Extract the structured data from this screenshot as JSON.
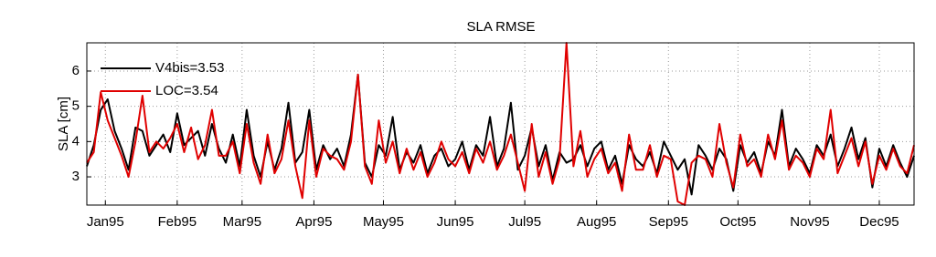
{
  "chart_data": {
    "type": "line",
    "title": "SLA RMSE",
    "y_label": "SLA [cm]",
    "x": [
      0,
      3,
      6,
      9,
      12,
      15,
      18,
      21,
      24,
      27,
      30,
      33,
      36,
      39,
      42,
      45,
      48,
      51,
      54,
      57,
      60,
      63,
      66,
      69,
      72,
      75,
      78,
      81,
      84,
      87,
      90,
      93,
      96,
      99,
      102,
      105,
      108,
      111,
      114,
      117,
      120,
      123,
      126,
      129,
      132,
      135,
      138,
      141,
      144,
      147,
      150,
      153,
      156,
      159,
      162,
      165,
      168,
      171,
      174,
      177,
      180,
      183,
      186,
      189,
      192,
      195,
      198,
      201,
      204,
      207,
      210,
      213,
      216,
      219,
      222,
      225,
      228,
      231,
      234,
      237,
      240,
      243,
      246,
      249,
      252,
      255,
      258,
      261,
      264,
      267,
      270,
      273,
      276,
      279,
      282,
      285,
      288,
      291,
      294,
      297,
      300,
      303,
      306,
      309,
      312,
      315,
      318,
      321,
      324,
      327,
      330,
      333,
      336,
      339,
      342,
      345,
      348,
      351,
      354,
      357
    ],
    "xlim": [
      0,
      357
    ],
    "xticks": [
      {
        "value": 8,
        "label": "Jan95"
      },
      {
        "value": 39,
        "label": "Feb95"
      },
      {
        "value": 67,
        "label": "Mar95"
      },
      {
        "value": 98,
        "label": "Apr95"
      },
      {
        "value": 128,
        "label": "May95"
      },
      {
        "value": 159,
        "label": "Jun95"
      },
      {
        "value": 189,
        "label": "Jul95"
      },
      {
        "value": 220,
        "label": "Aug95"
      },
      {
        "value": 251,
        "label": "Sep95"
      },
      {
        "value": 281,
        "label": "Oct95"
      },
      {
        "value": 312,
        "label": "Nov95"
      },
      {
        "value": 342,
        "label": "Dec95"
      }
    ],
    "ylim": [
      2.2,
      6.8
    ],
    "yticks": [
      3,
      4,
      5,
      6
    ],
    "grid": true,
    "legend": "top-left",
    "series": [
      {
        "name": "V4bis=3.53",
        "color": "#000000",
        "values": [
          3.3,
          3.9,
          4.9,
          5.2,
          4.3,
          3.8,
          3.2,
          4.4,
          4.3,
          3.6,
          3.9,
          4.2,
          3.7,
          4.8,
          3.9,
          4.1,
          4.3,
          3.6,
          4.5,
          3.8,
          3.4,
          4.2,
          3.3,
          4.9,
          3.6,
          3.0,
          4.0,
          3.2,
          3.8,
          5.1,
          3.4,
          3.7,
          4.9,
          3.2,
          3.9,
          3.5,
          3.8,
          3.3,
          4.2,
          5.9,
          3.4,
          3.0,
          3.9,
          3.6,
          4.7,
          3.2,
          3.7,
          3.4,
          3.9,
          3.1,
          3.6,
          3.8,
          3.3,
          3.5,
          4.0,
          3.2,
          3.9,
          3.6,
          4.7,
          3.3,
          3.8,
          5.1,
          3.2,
          3.6,
          4.4,
          3.3,
          3.9,
          2.9,
          3.7,
          3.4,
          3.5,
          3.9,
          3.3,
          3.8,
          4.0,
          3.2,
          3.6,
          2.8,
          3.9,
          3.5,
          3.3,
          3.7,
          3.1,
          4.0,
          3.6,
          3.2,
          3.5,
          2.5,
          3.9,
          3.6,
          3.2,
          3.8,
          3.5,
          2.6,
          3.9,
          3.4,
          3.7,
          3.1,
          4.0,
          3.6,
          4.9,
          3.3,
          3.8,
          3.5,
          3.1,
          3.9,
          3.6,
          4.2,
          3.3,
          3.8,
          4.4,
          3.5,
          4.1,
          2.7,
          3.8,
          3.3,
          3.9,
          3.4,
          3.0,
          3.6
        ]
      },
      {
        "name": "LOC=3.54",
        "color": "#e00000",
        "values": [
          3.4,
          3.7,
          5.4,
          4.6,
          4.1,
          3.6,
          3.0,
          4.0,
          5.3,
          3.7,
          4.0,
          3.8,
          4.1,
          4.5,
          3.7,
          4.4,
          3.5,
          3.9,
          4.9,
          3.6,
          3.6,
          4.0,
          3.1,
          4.5,
          3.4,
          2.8,
          4.2,
          3.1,
          3.5,
          4.6,
          3.3,
          2.4,
          4.6,
          3.0,
          3.8,
          3.6,
          3.5,
          3.2,
          4.0,
          5.9,
          3.3,
          2.8,
          4.6,
          3.4,
          4.0,
          3.1,
          3.8,
          3.2,
          3.7,
          3.0,
          3.4,
          4.0,
          3.5,
          3.3,
          3.7,
          3.1,
          3.8,
          3.4,
          4.0,
          3.2,
          3.6,
          4.2,
          3.4,
          2.6,
          4.5,
          3.0,
          3.7,
          2.8,
          3.5,
          6.8,
          3.3,
          4.3,
          3.0,
          3.5,
          3.8,
          3.1,
          3.4,
          2.6,
          4.2,
          3.2,
          3.2,
          3.9,
          3.0,
          3.6,
          3.5,
          2.3,
          2.2,
          3.4,
          3.6,
          3.5,
          3.0,
          4.5,
          3.4,
          2.7,
          4.2,
          3.3,
          3.5,
          3.0,
          4.2,
          3.5,
          4.6,
          3.2,
          3.6,
          3.4,
          3.0,
          3.8,
          3.5,
          4.9,
          3.1,
          3.6,
          4.1,
          3.3,
          4.0,
          2.8,
          3.6,
          3.2,
          3.8,
          3.3,
          3.1,
          3.9
        ]
      }
    ]
  }
}
